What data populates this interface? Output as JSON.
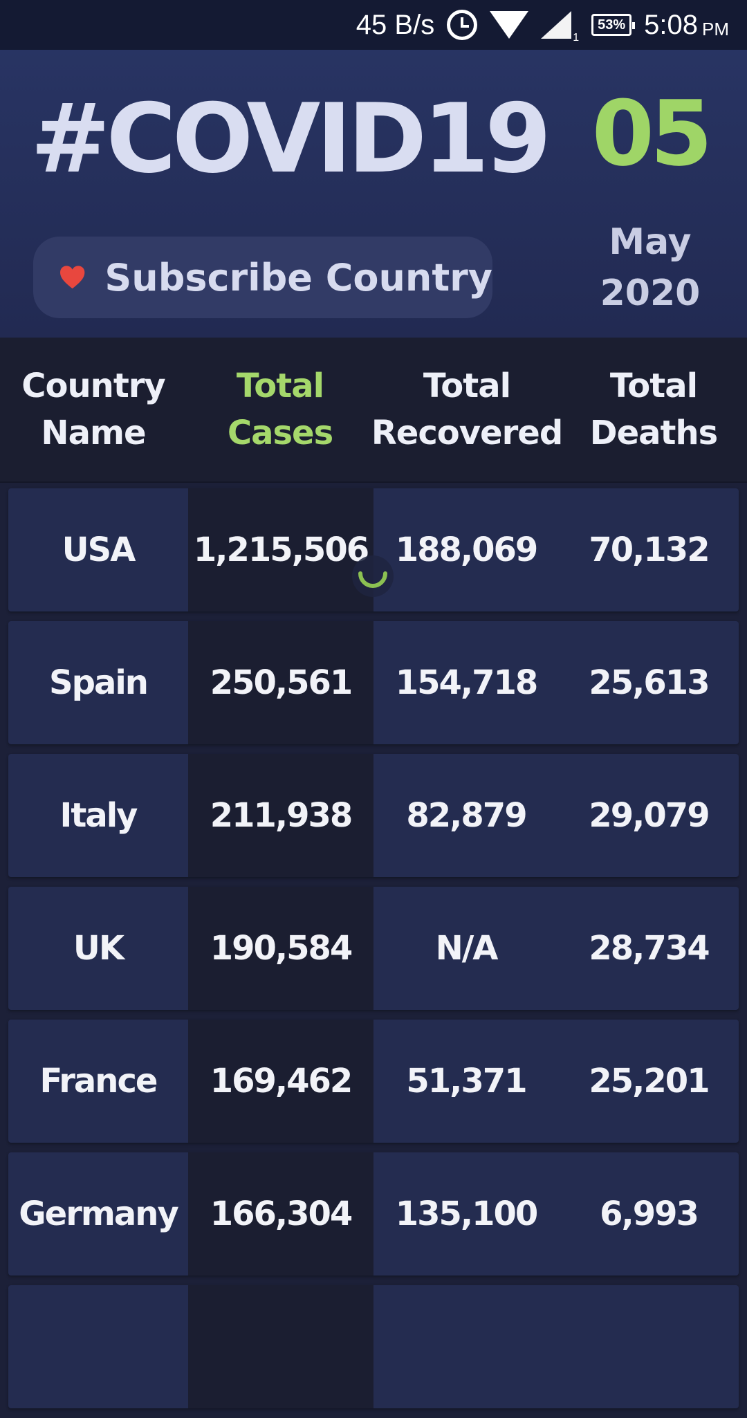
{
  "status_bar": {
    "net_speed": "45 B/s",
    "sim_number": "1",
    "battery": "53%",
    "time": "5:08",
    "ampm": "PM"
  },
  "header": {
    "title": "#COVID19",
    "day": "05",
    "month": "May",
    "year": "2020",
    "subscribe_label": "Subscribe Country"
  },
  "table": {
    "columns": [
      {
        "line1": "Country",
        "line2": "Name"
      },
      {
        "line1": "Total",
        "line2": "Cases"
      },
      {
        "line1": "Total",
        "line2": "Recovered"
      },
      {
        "line1": "Total",
        "line2": "Deaths"
      }
    ],
    "rows": [
      {
        "country": "USA",
        "cases": "1,215,506",
        "recovered": "188,069",
        "deaths": "70,132"
      },
      {
        "country": "Spain",
        "cases": "250,561",
        "recovered": "154,718",
        "deaths": "25,613"
      },
      {
        "country": "Italy",
        "cases": "211,938",
        "recovered": "82,879",
        "deaths": "29,079"
      },
      {
        "country": "UK",
        "cases": "190,584",
        "recovered": "N/A",
        "deaths": "28,734"
      },
      {
        "country": "France",
        "cases": "169,462",
        "recovered": "51,371",
        "deaths": "25,201"
      },
      {
        "country": "Germany",
        "cases": "166,304",
        "recovered": "135,100",
        "deaths": "6,993"
      },
      {
        "country": "",
        "cases": "",
        "recovered": "",
        "deaths": ""
      }
    ]
  },
  "colors": {
    "accent_green": "#a5d86b",
    "heart_red": "#e8473e"
  },
  "icons": {
    "alarm": "alarm-icon",
    "wifi": "wifi-icon",
    "signal": "signal-icon",
    "battery": "battery-icon",
    "heart": "heart-icon",
    "spinner": "loading-spinner-icon"
  }
}
